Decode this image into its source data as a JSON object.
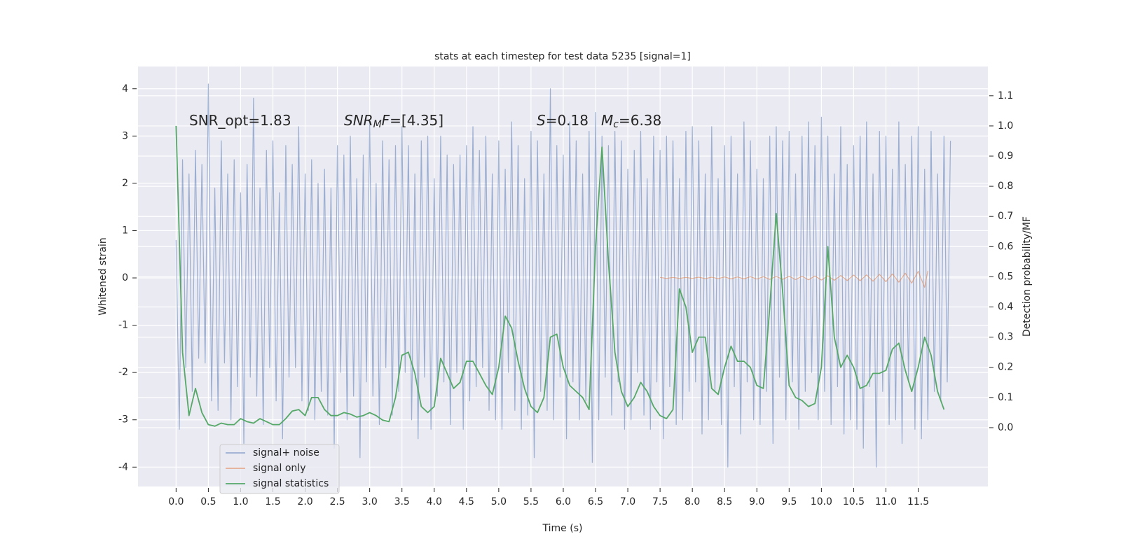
{
  "chart_data": {
    "type": "line",
    "title": "stats at each timestep for test data 5235 [signal=1]",
    "xlabel": "Time (s)",
    "ylabel": "Whitened strain",
    "y2label": "Detection probability/MF",
    "xlim": [
      -0.59,
      12.58
    ],
    "ylim": [
      -4.41,
      4.47
    ],
    "y2lim": [
      -0.195,
      1.197
    ],
    "xticks": [
      {
        "value": 0,
        "label": "0.0"
      },
      0.5,
      {
        "value": 1,
        "label": "1.0"
      },
      1.5,
      {
        "value": 2,
        "label": "2.0"
      },
      2.5,
      {
        "value": 3,
        "label": "3.0"
      },
      3.5,
      {
        "value": 4,
        "label": "4.0"
      },
      4.5,
      {
        "value": 5,
        "label": "5.0"
      },
      5.5,
      {
        "value": 6,
        "label": "6.0"
      },
      6.5,
      {
        "value": 7,
        "label": "7.0"
      },
      7.5,
      {
        "value": 8,
        "label": "8.0"
      },
      8.5,
      {
        "value": 9,
        "label": "9.0"
      },
      9.5,
      {
        "value": 10,
        "label": "10.0"
      },
      10.5,
      {
        "value": 11,
        "label": "11.0"
      },
      11.5
    ],
    "yticks": [
      -4,
      -3,
      -2,
      -1,
      0,
      1,
      2,
      3,
      4
    ],
    "y2ticks": [
      {
        "value": 0,
        "label": "0.0"
      },
      0.1,
      0.2,
      0.3,
      0.4,
      0.5,
      0.6,
      0.7,
      0.8,
      0.9,
      {
        "value": 1,
        "label": "1.0"
      },
      1.1
    ],
    "grid": true,
    "legend": "lower left",
    "series": [
      {
        "name": "signal+ noise",
        "color": "#4c72b0",
        "opacity": 0.5,
        "x": [
          0,
          0.05,
          0.1,
          0.15,
          0.2,
          0.25,
          0.3,
          0.35,
          0.4,
          0.45,
          0.5,
          0.55,
          0.6,
          0.65,
          0.7,
          0.75,
          0.8,
          0.85,
          0.9,
          0.95,
          1,
          1.05,
          1.1,
          1.15,
          1.2,
          1.25,
          1.3,
          1.35,
          1.4,
          1.45,
          1.5,
          1.55,
          1.6,
          1.65,
          1.7,
          1.75,
          1.8,
          1.85,
          1.9,
          1.95,
          2,
          2.05,
          2.1,
          2.15,
          2.2,
          2.25,
          2.3,
          2.35,
          2.4,
          2.45,
          2.5,
          2.55,
          2.6,
          2.65,
          2.7,
          2.75,
          2.8,
          2.85,
          2.9,
          2.95,
          3,
          3.05,
          3.1,
          3.15,
          3.2,
          3.25,
          3.3,
          3.35,
          3.4,
          3.45,
          3.5,
          3.55,
          3.6,
          3.65,
          3.7,
          3.75,
          3.8,
          3.85,
          3.9,
          3.95,
          4,
          4.05,
          4.1,
          4.15,
          4.2,
          4.25,
          4.3,
          4.35,
          4.4,
          4.45,
          4.5,
          4.55,
          4.6,
          4.65,
          4.7,
          4.75,
          4.8,
          4.85,
          4.9,
          4.95,
          5,
          5.05,
          5.1,
          5.15,
          5.2,
          5.25,
          5.3,
          5.35,
          5.4,
          5.45,
          5.5,
          5.55,
          5.6,
          5.65,
          5.7,
          5.75,
          5.8,
          5.85,
          5.9,
          5.95,
          6,
          6.05,
          6.1,
          6.15,
          6.2,
          6.25,
          6.3,
          6.35,
          6.4,
          6.45,
          6.5,
          6.55,
          6.6,
          6.65,
          6.7,
          6.75,
          6.8,
          6.85,
          6.9,
          6.95,
          7,
          7.05,
          7.1,
          7.15,
          7.2,
          7.25,
          7.3,
          7.35,
          7.4,
          7.45,
          7.5,
          7.55,
          7.6,
          7.65,
          7.7,
          7.75,
          7.8,
          7.85,
          7.9,
          7.95,
          8,
          8.05,
          8.1,
          8.15,
          8.2,
          8.25,
          8.3,
          8.35,
          8.4,
          8.45,
          8.5,
          8.55,
          8.6,
          8.65,
          8.7,
          8.75,
          8.8,
          8.85,
          8.9,
          8.95,
          9,
          9.05,
          9.1,
          9.15,
          9.2,
          9.25,
          9.3,
          9.35,
          9.4,
          9.45,
          9.5,
          9.55,
          9.6,
          9.65,
          9.7,
          9.75,
          9.8,
          9.85,
          9.9,
          9.95,
          10,
          10.05,
          10.1,
          10.15,
          10.2,
          10.25,
          10.3,
          10.35,
          10.4,
          10.45,
          10.5,
          10.55,
          10.6,
          10.65,
          10.7,
          10.75,
          10.8,
          10.85,
          10.9,
          10.95,
          11,
          11.05,
          11.1,
          11.15,
          11.2,
          11.25,
          11.3,
          11.35,
          11.4,
          11.45,
          11.5,
          11.55,
          11.6,
          11.65,
          11.7,
          11.75,
          11.8,
          11.85,
          11.9,
          11.95,
          12
        ],
        "values": [
          0.8,
          -3.2,
          2.5,
          -1.9,
          2.2,
          -2.4,
          2.7,
          -1.7,
          2.4,
          -1.8,
          4.1,
          -2.6,
          1.9,
          -2.8,
          2.9,
          -1.8,
          2.2,
          -3.0,
          2.5,
          -2.3,
          1.8,
          -3.5,
          2.4,
          -2.1,
          3.8,
          -2.5,
          1.9,
          -3.1,
          2.7,
          -1.9,
          2.9,
          -2.6,
          1.8,
          -3.4,
          2.8,
          -2.1,
          2.4,
          -1.9,
          3.2,
          -2.6,
          2.2,
          -2.8,
          2.5,
          -3.0,
          2.0,
          -2.4,
          2.3,
          -2.9,
          1.9,
          -3.6,
          2.8,
          -2.0,
          2.6,
          -3.0,
          3.0,
          -2.5,
          2.1,
          -3.8,
          2.6,
          -2.2,
          3.3,
          -2.5,
          2.0,
          -3.1,
          2.9,
          -1.9,
          2.5,
          -2.9,
          2.8,
          -2.4,
          3.2,
          -2.0,
          2.8,
          -3.0,
          2.2,
          -3.4,
          2.9,
          -2.1,
          3.0,
          -3.2,
          2.1,
          -2.5,
          3.0,
          -2.2,
          2.6,
          -3.1,
          2.4,
          -2.0,
          2.6,
          -3.2,
          2.8,
          -2.6,
          3.2,
          -2.3,
          2.7,
          -1.9,
          3.0,
          -2.8,
          2.2,
          -3.0,
          2.9,
          -3.2,
          2.3,
          -2.0,
          3.3,
          -2.8,
          2.8,
          -3.2,
          2.1,
          -2.9,
          3.1,
          -3.8,
          2.9,
          -2.4,
          2.2,
          -2.8,
          4.0,
          -3.0,
          2.8,
          -2.1,
          2.6,
          -3.4,
          3.3,
          -2.2,
          2.9,
          -3.0,
          2.2,
          -2.6,
          3.1,
          -3.9,
          3.5,
          -3.0,
          3.0,
          -2.1,
          2.8,
          -2.9,
          3.1,
          -2.2,
          2.9,
          -3.2,
          2.3,
          -3.0,
          2.7,
          -2.0,
          3.1,
          -2.9,
          2.1,
          -3.2,
          3.0,
          -2.2,
          2.7,
          -3.4,
          3.0,
          -2.3,
          2.9,
          -3.1,
          2.1,
          -3.0,
          3.1,
          -2.4,
          3.2,
          -2.2,
          2.9,
          -3.3,
          2.2,
          -3.0,
          3.2,
          -2.4,
          2.1,
          -3.1,
          2.8,
          -4.0,
          3.0,
          -2.3,
          2.2,
          -3.3,
          3.3,
          -2.2,
          2.9,
          -3.0,
          2.3,
          -3.1,
          2.1,
          -2.4,
          3.0,
          -3.5,
          3.2,
          -2.1,
          2.9,
          -3.0,
          3.1,
          -2.2,
          2.2,
          -3.2,
          3.0,
          -2.4,
          3.3,
          -2.0,
          2.8,
          -3.0,
          3.4,
          -2.4,
          3.0,
          -3.1,
          2.2,
          -2.3,
          3.2,
          -3.3,
          2.4,
          -3.0,
          2.8,
          -3.2,
          3.0,
          -3.6,
          3.3,
          -2.3,
          2.2,
          -4.0,
          3.1,
          -2.4,
          3.0,
          -3.1,
          2.3,
          -3.0,
          3.3,
          -3.5,
          2.4,
          -2.2,
          3.0,
          -3.2,
          3.2,
          -3.4,
          2.3,
          -3.0,
          3.1,
          -2.4,
          2.2,
          -2.6,
          3.0,
          -2.2,
          2.9
        ]
      },
      {
        "name": "signal only",
        "color": "#dd8452",
        "opacity": 0.6,
        "x": [
          7.5,
          7.6,
          7.7,
          7.8,
          7.9,
          8,
          8.1,
          8.2,
          8.3,
          8.4,
          8.5,
          8.6,
          8.7,
          8.8,
          8.9,
          9,
          9.1,
          9.2,
          9.3,
          9.4,
          9.5,
          9.6,
          9.7,
          9.8,
          9.9,
          10,
          10.1,
          10.2,
          10.3,
          10.4,
          10.5,
          10.6,
          10.7,
          10.8,
          10.9,
          11,
          11.1,
          11.2,
          11.3,
          11.4,
          11.5,
          11.6,
          11.65
        ],
        "values": [
          0.01,
          -0.01,
          0.01,
          -0.01,
          0.01,
          -0.01,
          0.015,
          -0.015,
          0.015,
          -0.015,
          0.02,
          -0.02,
          0.02,
          -0.02,
          0.025,
          -0.025,
          0.025,
          -0.03,
          0.03,
          -0.03,
          0.035,
          -0.035,
          0.035,
          -0.04,
          0.04,
          -0.045,
          0.045,
          -0.05,
          0.05,
          -0.055,
          0.06,
          -0.06,
          0.065,
          -0.07,
          0.075,
          -0.08,
          0.085,
          -0.09,
          0.1,
          -0.11,
          0.14,
          -0.2,
          0.15
        ]
      },
      {
        "name": "signal statistics",
        "color": "#55a868",
        "opacity": 1,
        "axis": "y2",
        "x": [
          0,
          0.1,
          0.2,
          0.3,
          0.4,
          0.5,
          0.6,
          0.7,
          0.8,
          0.9,
          1,
          1.1,
          1.2,
          1.3,
          1.4,
          1.5,
          1.6,
          1.7,
          1.8,
          1.9,
          2,
          2.1,
          2.2,
          2.3,
          2.4,
          2.5,
          2.6,
          2.7,
          2.8,
          2.9,
          3,
          3.1,
          3.2,
          3.3,
          3.4,
          3.5,
          3.6,
          3.7,
          3.8,
          3.9,
          4,
          4.1,
          4.2,
          4.3,
          4.4,
          4.5,
          4.6,
          4.7,
          4.8,
          4.9,
          5,
          5.1,
          5.2,
          5.3,
          5.4,
          5.5,
          5.6,
          5.7,
          5.8,
          5.9,
          6,
          6.1,
          6.2,
          6.3,
          6.4,
          6.5,
          6.6,
          6.7,
          6.8,
          6.9,
          7,
          7.1,
          7.2,
          7.3,
          7.4,
          7.5,
          7.6,
          7.7,
          7.8,
          7.9,
          8,
          8.1,
          8.2,
          8.3,
          8.4,
          8.5,
          8.6,
          8.7,
          8.8,
          8.9,
          9,
          9.1,
          9.2,
          9.3,
          9.4,
          9.5,
          9.6,
          9.7,
          9.8,
          9.9,
          10,
          10.1,
          10.2,
          10.3,
          10.4,
          10.5,
          10.6,
          10.7,
          10.8,
          10.9,
          11,
          11.1,
          11.2,
          11.3,
          11.4,
          11.5,
          11.6,
          11.7,
          11.8,
          11.9
        ],
        "values": [
          1.0,
          0.25,
          0.04,
          0.13,
          0.05,
          0.01,
          0.005,
          0.015,
          0.01,
          0.01,
          0.03,
          0.02,
          0.015,
          0.03,
          0.02,
          0.01,
          0.01,
          0.03,
          0.055,
          0.06,
          0.04,
          0.1,
          0.1,
          0.06,
          0.04,
          0.04,
          0.05,
          0.045,
          0.035,
          0.04,
          0.05,
          0.04,
          0.025,
          0.02,
          0.1,
          0.24,
          0.25,
          0.18,
          0.07,
          0.05,
          0.07,
          0.23,
          0.18,
          0.13,
          0.15,
          0.22,
          0.22,
          0.18,
          0.14,
          0.11,
          0.2,
          0.37,
          0.33,
          0.22,
          0.13,
          0.07,
          0.05,
          0.1,
          0.3,
          0.31,
          0.2,
          0.14,
          0.12,
          0.1,
          0.06,
          0.6,
          0.93,
          0.55,
          0.25,
          0.12,
          0.07,
          0.1,
          0.15,
          0.12,
          0.07,
          0.04,
          0.03,
          0.06,
          0.46,
          0.4,
          0.25,
          0.3,
          0.3,
          0.13,
          0.11,
          0.2,
          0.27,
          0.22,
          0.22,
          0.2,
          0.14,
          0.13,
          0.4,
          0.71,
          0.45,
          0.14,
          0.1,
          0.09,
          0.07,
          0.08,
          0.2,
          0.6,
          0.3,
          0.2,
          0.24,
          0.2,
          0.13,
          0.14,
          0.18,
          0.18,
          0.19,
          0.26,
          0.28,
          0.19,
          0.12,
          0.2,
          0.3,
          0.24,
          0.12,
          0.06
        ]
      }
    ],
    "annotations": [
      {
        "parts": [
          {
            "text": "SNR_opt=1.83"
          }
        ]
      },
      {
        "parts": [
          {
            "text": "SNR",
            "italic": true
          },
          {
            "text": "M",
            "italic": true,
            "sub": true
          },
          {
            "text": "F",
            "italic": true
          },
          {
            "text": "=[4.35]"
          }
        ]
      },
      {
        "parts": [
          {
            "text": "S",
            "italic": true
          },
          {
            "text": "=0.18"
          }
        ]
      },
      {
        "parts": [
          {
            "text": "M",
            "italic": true
          },
          {
            "text": "c",
            "italic": true,
            "sub": true
          },
          {
            "text": "=6.38"
          }
        ]
      }
    ]
  }
}
